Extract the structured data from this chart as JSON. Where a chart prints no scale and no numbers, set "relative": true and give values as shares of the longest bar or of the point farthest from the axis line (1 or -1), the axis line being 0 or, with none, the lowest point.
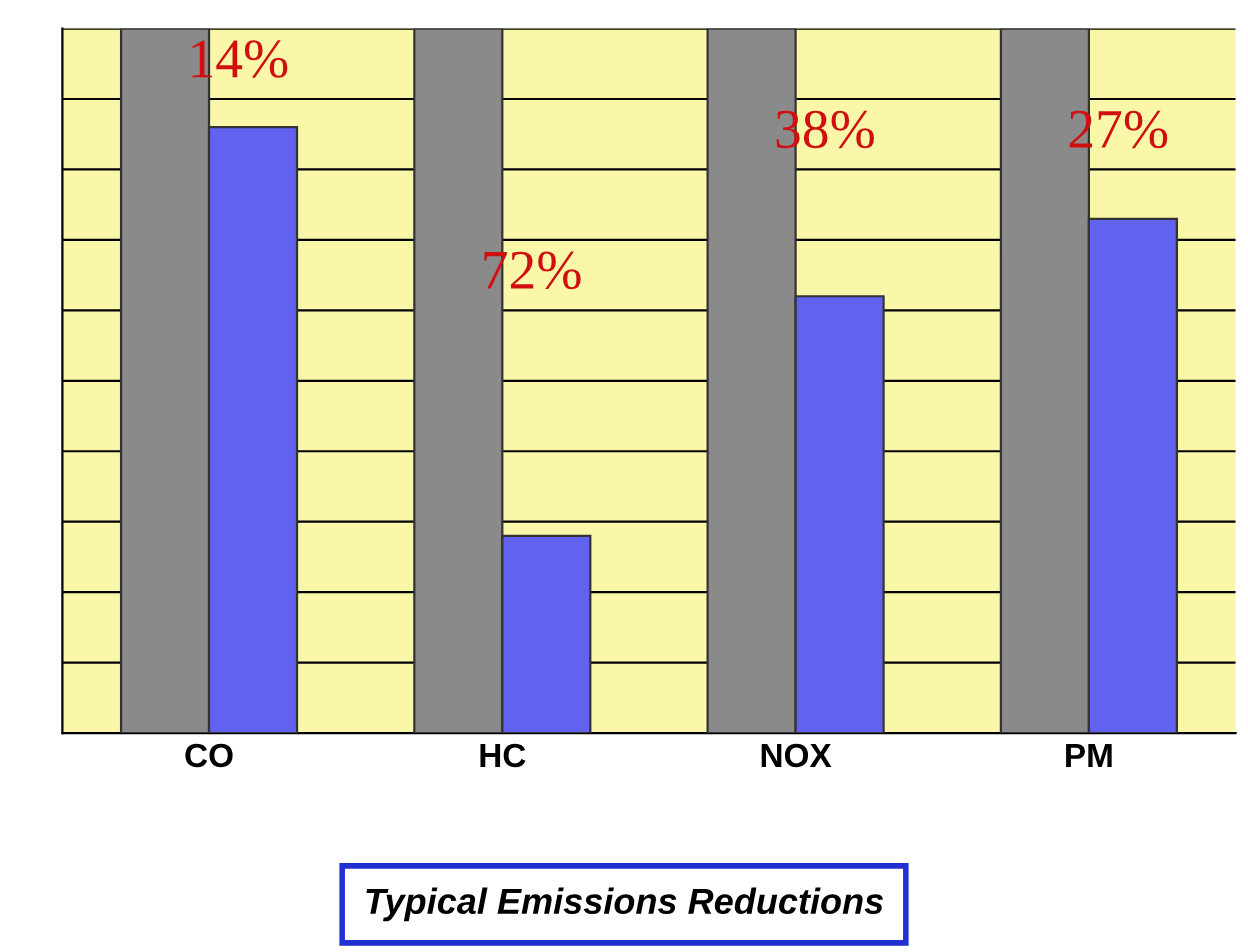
{
  "chart_data": {
    "type": "bar",
    "title": "Typical Emissions Reductions",
    "categories": [
      "CO",
      "HC",
      "NOX",
      "PM"
    ],
    "relative": true,
    "series": [
      {
        "color": "#8a8a8a",
        "values": [
          1,
          1,
          1,
          1
        ]
      },
      {
        "color": "#6262f0",
        "values": [
          0.86,
          0.28,
          0.62,
          0.73
        ]
      }
    ],
    "annotations": [
      {
        "text": "14%",
        "x": "CO",
        "y": 0.95
      },
      {
        "text": "72%",
        "x": "HC",
        "y": 0.65
      },
      {
        "text": "38%",
        "x": "NOX",
        "y": 0.85
      },
      {
        "text": "27%",
        "x": "PM",
        "y": 0.85
      }
    ],
    "grid": "y"
  }
}
